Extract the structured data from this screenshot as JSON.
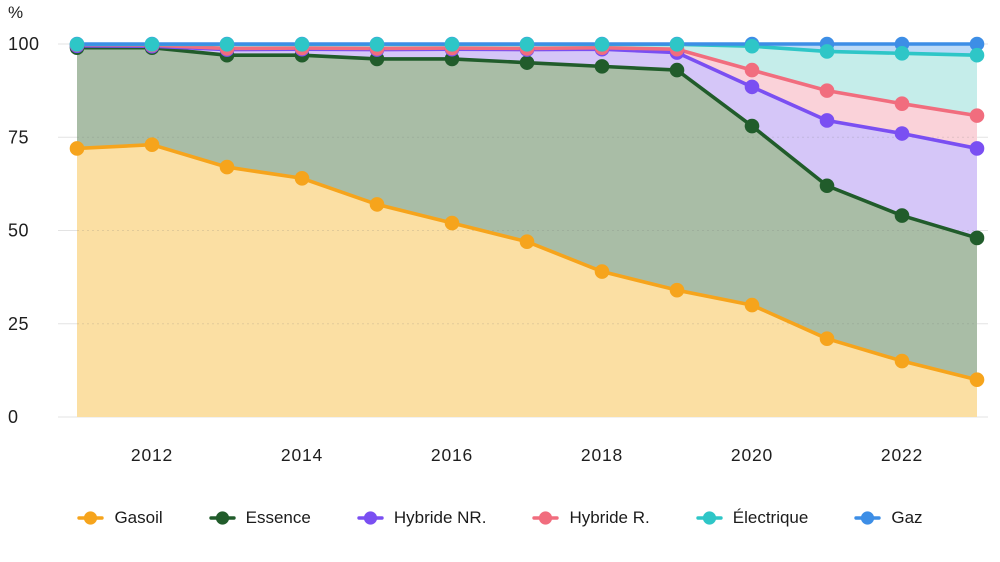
{
  "chart_data": {
    "type": "area",
    "stacked": true,
    "title": "",
    "xlabel": "",
    "ylabel": "%",
    "unit": "%",
    "ylim": [
      0,
      100
    ],
    "grid": true,
    "legend_position": "bottom",
    "x": [
      2011,
      2012,
      2013,
      2014,
      2015,
      2016,
      2017,
      2018,
      2019,
      2020,
      2021,
      2022,
      2023
    ],
    "x_ticks": [
      "2012",
      "2014",
      "2016",
      "2018",
      "2020",
      "2022"
    ],
    "y_ticks": [
      "0",
      "25",
      "50",
      "75",
      "100"
    ],
    "series": [
      {
        "name": "Gasoil",
        "color": "#F6A41C",
        "fill": "#FBDFA3",
        "values": [
          72,
          73,
          67,
          64,
          57,
          52,
          47,
          39,
          34,
          30,
          21,
          15,
          10
        ]
      },
      {
        "name": "Essence",
        "color": "#215C2B",
        "fill": "#A9BDA6",
        "values": [
          27,
          26,
          30,
          33,
          39,
          44,
          48,
          55,
          59,
          48,
          41,
          39,
          38
        ]
      },
      {
        "name": "Hybride NR.",
        "color": "#7A4FF2",
        "fill": "#D5C6F8",
        "values": [
          0.5,
          0.4,
          1.5,
          1.6,
          2.5,
          2.6,
          3.5,
          4.6,
          4.7,
          10.5,
          17.5,
          22,
          24
        ]
      },
      {
        "name": "Hybride R.",
        "color": "#F16D7E",
        "fill": "#FAD2D9",
        "values": [
          0.3,
          0.3,
          0.3,
          0.3,
          0.3,
          0.3,
          0.3,
          0.4,
          0.9,
          4.5,
          8,
          8,
          8.8
        ]
      },
      {
        "name": "Électrique",
        "color": "#2EC6C7",
        "fill": "#C5EDEA",
        "values": [
          0.1,
          0.2,
          1.1,
          1.0,
          1.1,
          1.0,
          1.1,
          0.9,
          1.3,
          6.4,
          10.5,
          13.5,
          16.2
        ]
      },
      {
        "name": "Gaz",
        "color": "#3D8EE6",
        "fill": "#BBDAF7",
        "values": [
          0.1,
          0.1,
          0.1,
          0.1,
          0.1,
          0.1,
          0.1,
          0.1,
          0.1,
          0.6,
          2,
          2.5,
          3
        ]
      }
    ],
    "colors": {
      "grid": "#E3E3E3",
      "grid_overlay": "rgba(110,110,110,0.18)",
      "text": "#1e1e1e",
      "background": "#ffffff"
    }
  }
}
